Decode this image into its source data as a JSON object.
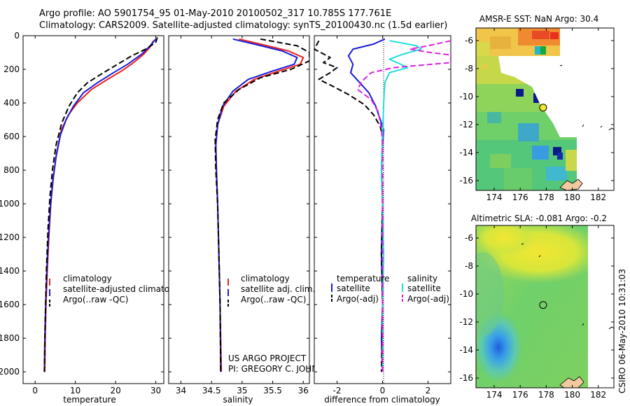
{
  "header": {
    "line1": "Argo profile: AO 5901754_95 01-May-2010 20100502_317 10.785S 177.761E",
    "line2": "Climatology: CARS2009. Satellite-adjusted climatology: synTS_20100430.nc (1.5d earlier)"
  },
  "credits": {
    "project": "US ARGO PROJECT",
    "pi": "PI: GREGORY C. JOHNSON",
    "side": "CSIRO 06-May-2010 10:31:03"
  },
  "chart_data": [
    {
      "type": "line",
      "title": "",
      "xlabel": "temperature",
      "ylabel": "",
      "xlim": [
        -3,
        32
      ],
      "ylim": [
        2070,
        0
      ],
      "xticks": [
        0,
        10,
        20,
        30
      ],
      "yticks": [
        0,
        200,
        400,
        600,
        800,
        1000,
        1200,
        1400,
        1600,
        1800,
        2000
      ],
      "legend": [
        "climatology",
        "satellite-adjusted climatology",
        "Argo(..raw -QC)"
      ],
      "series": [
        {
          "name": "climatology",
          "color": "#e8231e",
          "dash": "",
          "points": [
            [
              29.4,
              30
            ],
            [
              28.5,
              70
            ],
            [
              27.0,
              110
            ],
            [
              24.5,
              160
            ],
            [
              21.5,
              210
            ],
            [
              18.0,
              260
            ],
            [
              14.0,
              320
            ],
            [
              10.5,
              400
            ],
            [
              8.3,
              470
            ],
            [
              6.5,
              560
            ],
            [
              5.3,
              700
            ],
            [
              4.5,
              850
            ],
            [
              3.9,
              1000
            ],
            [
              3.4,
              1200
            ],
            [
              3.0,
              1400
            ],
            [
              2.7,
              1600
            ],
            [
              2.5,
              1800
            ],
            [
              2.4,
              2000
            ]
          ]
        },
        {
          "name": "satellite-adjusted climatology",
          "color": "#1a1ad6",
          "dash": "",
          "points": [
            [
              30.0,
              20
            ],
            [
              28.6,
              60
            ],
            [
              26.5,
              110
            ],
            [
              23.0,
              170
            ],
            [
              19.5,
              220
            ],
            [
              15.5,
              280
            ],
            [
              12.0,
              340
            ],
            [
              9.5,
              420
            ],
            [
              7.7,
              500
            ],
            [
              6.3,
              590
            ],
            [
              5.2,
              720
            ],
            [
              4.4,
              860
            ],
            [
              3.8,
              1010
            ],
            [
              3.3,
              1200
            ],
            [
              2.9,
              1400
            ],
            [
              2.6,
              1600
            ],
            [
              2.4,
              1800
            ],
            [
              2.3,
              2000
            ]
          ]
        },
        {
          "name": "Argo(..raw -QC)",
          "color": "#000000",
          "dash": "8,4",
          "points": [
            [
              30.4,
              10
            ],
            [
              30.0,
              40
            ],
            [
              27.5,
              80
            ],
            [
              24.0,
              120
            ],
            [
              20.5,
              170
            ],
            [
              17.0,
              220
            ],
            [
              13.0,
              280
            ],
            [
              10.5,
              340
            ],
            [
              8.4,
              420
            ],
            [
              6.6,
              520
            ],
            [
              5.2,
              650
            ],
            [
              4.3,
              800
            ],
            [
              3.7,
              950
            ],
            [
              3.2,
              1150
            ],
            [
              2.8,
              1400
            ],
            [
              2.5,
              1700
            ],
            [
              2.3,
              2000
            ]
          ]
        }
      ]
    },
    {
      "type": "line",
      "title": "",
      "xlabel": "salinity",
      "ylabel": "",
      "xlim": [
        33.8,
        36.1
      ],
      "ylim": [
        2070,
        0
      ],
      "xticks": [
        34,
        34.5,
        35,
        35.5,
        36
      ],
      "xtick_labels": [
        "34",
        "34.5",
        "35",
        "35.5",
        "36"
      ],
      "legend": [
        "climatology",
        "satellite adj. clim.",
        "Argo(..raw -QC)"
      ],
      "series": [
        {
          "name": "climatology",
          "color": "#e8231e",
          "dash": "",
          "points": [
            [
              34.95,
              20
            ],
            [
              35.3,
              50
            ],
            [
              35.75,
              90
            ],
            [
              36.0,
              130
            ],
            [
              35.95,
              170
            ],
            [
              35.6,
              210
            ],
            [
              35.2,
              260
            ],
            [
              34.9,
              330
            ],
            [
              34.7,
              420
            ],
            [
              34.6,
              530
            ],
            [
              34.57,
              650
            ],
            [
              34.58,
              800
            ],
            [
              34.6,
              1000
            ],
            [
              34.62,
              1300
            ],
            [
              34.64,
              1600
            ],
            [
              34.66,
              2000
            ]
          ]
        },
        {
          "name": "satellite adj. clim.",
          "color": "#1a1ad6",
          "dash": "",
          "points": [
            [
              34.85,
              20
            ],
            [
              35.2,
              50
            ],
            [
              35.65,
              90
            ],
            [
              35.9,
              130
            ],
            [
              35.85,
              170
            ],
            [
              35.5,
              210
            ],
            [
              35.1,
              260
            ],
            [
              34.85,
              330
            ],
            [
              34.68,
              420
            ],
            [
              34.6,
              530
            ],
            [
              34.57,
              650
            ],
            [
              34.58,
              800
            ],
            [
              34.6,
              1000
            ],
            [
              34.62,
              1300
            ],
            [
              34.64,
              1600
            ],
            [
              34.65,
              2000
            ]
          ]
        },
        {
          "name": "Argo(..raw -QC)",
          "color": "#000000",
          "dash": "8,4",
          "points": [
            [
              35.3,
              20
            ],
            [
              35.9,
              60
            ],
            [
              36.1,
              100
            ],
            [
              36.1,
              150
            ],
            [
              35.8,
              200
            ],
            [
              35.3,
              250
            ],
            [
              34.95,
              320
            ],
            [
              34.7,
              400
            ],
            [
              34.6,
              500
            ],
            [
              34.56,
              620
            ],
            [
              34.57,
              800
            ],
            [
              34.6,
              1000
            ],
            [
              34.62,
              1300
            ],
            [
              34.64,
              1600
            ],
            [
              34.65,
              2000
            ]
          ]
        }
      ]
    },
    {
      "type": "line",
      "title": "",
      "xlabel": "difference from climatology",
      "ylabel": "",
      "xlim": [
        -3,
        3
      ],
      "ylim": [
        2070,
        0
      ],
      "xticks": [
        -2,
        0,
        2
      ],
      "legend": [
        "temperature",
        "satellite",
        "Argo(-adj)",
        "salinity",
        "satellite",
        "Argo(-adj)"
      ],
      "series": [
        {
          "name": "temperature satellite",
          "color": "#1a1ad6",
          "dash": "",
          "points": [
            [
              0.1,
              20
            ],
            [
              -0.4,
              50
            ],
            [
              -1.3,
              80
            ],
            [
              -1.5,
              120
            ],
            [
              -1.3,
              170
            ],
            [
              -1.4,
              220
            ],
            [
              -1.0,
              280
            ],
            [
              -0.6,
              340
            ],
            [
              -0.3,
              420
            ],
            [
              -0.1,
              500
            ],
            [
              0.05,
              560
            ],
            [
              0.0,
              650
            ],
            [
              -0.05,
              800
            ],
            [
              0.0,
              1000
            ],
            [
              -0.05,
              1300
            ],
            [
              0.0,
              1600
            ],
            [
              -0.05,
              1800
            ],
            [
              0.0,
              2000
            ]
          ]
        },
        {
          "name": "temperature Argo(-adj)",
          "color": "#000000",
          "dash": "8,4",
          "points": [
            [
              -2.8,
              30
            ],
            [
              -3.0,
              80
            ],
            [
              -2.3,
              130
            ],
            [
              -2.6,
              160
            ],
            [
              -2.0,
              190
            ],
            [
              -2.3,
              220
            ],
            [
              -2.8,
              260
            ],
            [
              -2.2,
              300
            ],
            [
              -1.5,
              350
            ],
            [
              -0.8,
              410
            ],
            [
              -0.4,
              470
            ],
            [
              -0.1,
              540
            ],
            [
              0.0,
              600
            ],
            [
              -0.05,
              800
            ],
            [
              0.0,
              1000
            ],
            [
              -0.05,
              1300
            ],
            [
              0.0,
              1600
            ],
            [
              -0.05,
              2000
            ]
          ]
        },
        {
          "name": "salinity satellite",
          "color": "#22dddd",
          "dash": "",
          "points": [
            [
              0.3,
              30
            ],
            [
              1.5,
              60
            ],
            [
              1.7,
              80
            ],
            [
              0.9,
              110
            ],
            [
              0.3,
              140
            ],
            [
              0.8,
              170
            ],
            [
              1.1,
              190
            ],
            [
              0.3,
              220
            ],
            [
              0.1,
              280
            ],
            [
              0.05,
              400
            ],
            [
              0.0,
              600
            ],
            [
              -0.05,
              800
            ],
            [
              0.0,
              1000
            ],
            [
              0.05,
              1300
            ],
            [
              0.0,
              1600
            ],
            [
              0.0,
              2000
            ]
          ]
        },
        {
          "name": "salinity Argo(-adj)",
          "color": "#dd22dd",
          "dash": "8,4",
          "points": [
            [
              3.0,
              30
            ],
            [
              2.0,
              60
            ],
            [
              1.2,
              80
            ],
            [
              2.1,
              100
            ],
            [
              3.0,
              115
            ],
            [
              3.0,
              160
            ],
            [
              0.5,
              190
            ],
            [
              -0.5,
              220
            ],
            [
              -0.9,
              270
            ],
            [
              -1.1,
              320
            ],
            [
              -0.5,
              380
            ],
            [
              -0.2,
              450
            ],
            [
              -0.05,
              550
            ],
            [
              0.0,
              650
            ],
            [
              0.0,
              800
            ],
            [
              0.0,
              1000
            ],
            [
              0.0,
              1300
            ],
            [
              0.0,
              2000
            ]
          ]
        }
      ]
    },
    {
      "type": "heatmap",
      "title": "AMSR-E SST: NaN Argo: 30.4",
      "xlabel": "",
      "ylabel": "",
      "xlim": [
        172.6,
        183.2
      ],
      "ylim": [
        -16.7,
        -5.1
      ],
      "xticks": [
        174,
        176,
        178,
        180,
        182
      ],
      "yticks": [
        -6,
        -8,
        -10,
        -12,
        -14,
        -16
      ],
      "marker": {
        "lon": 177.761,
        "lat": -10.785
      },
      "note": "SST field with cloud-masked (white) gaps; highest values (red/orange) in the NE, greens and blues toward the SE"
    },
    {
      "type": "heatmap",
      "title": "Altimetric SLA: -0.081 Argo: -0.2",
      "xlabel": "",
      "ylabel": "",
      "xlim": [
        172.6,
        183.2
      ],
      "ylim": [
        -16.7,
        -5.1
      ],
      "xticks": [
        174,
        176,
        178,
        180,
        182
      ],
      "yticks": [
        -6,
        -8,
        -10,
        -12,
        -14,
        -16
      ],
      "marker": {
        "lon": 177.761,
        "lat": -10.785
      },
      "note": "Sea level anomaly; mostly green/yellow with a blue low near 174.5E 14.5S"
    }
  ]
}
